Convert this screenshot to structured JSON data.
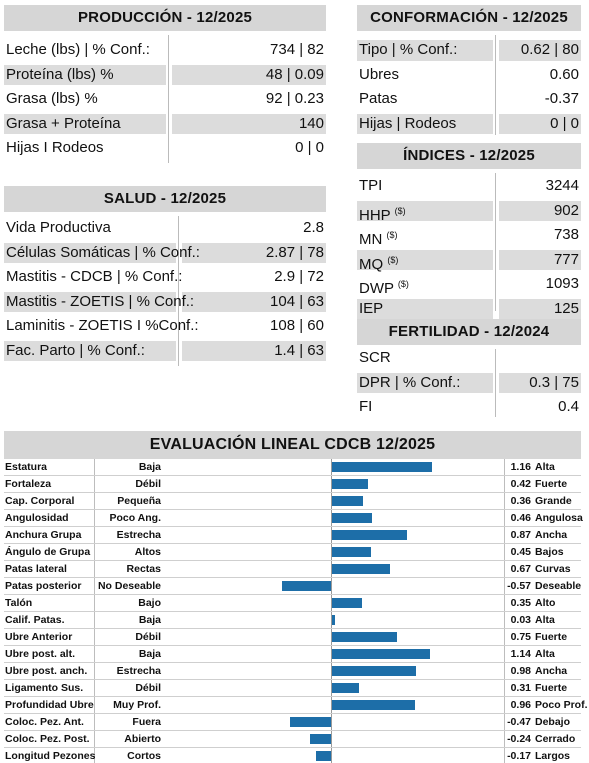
{
  "produccion": {
    "title": "PRODUCCIÓN - 12/2025",
    "rows": [
      {
        "label": "Leche (lbs) | % Conf.:",
        "value": "734 | 82"
      },
      {
        "label": "Proteína (lbs) %",
        "value": "48 | 0.09"
      },
      {
        "label": "Grasa (lbs) %",
        "value": "92 | 0.23"
      },
      {
        "label": "Grasa + Proteína",
        "value": "140"
      },
      {
        "label": "Hijas I Rodeos",
        "value": "0 | 0"
      }
    ]
  },
  "salud": {
    "title": "SALUD - 12/2025",
    "rows": [
      {
        "label": "Vida Productiva",
        "value": "2.8"
      },
      {
        "label": "Células Somáticas | % Conf.:",
        "value": "2.87 | 78"
      },
      {
        "label": "Mastitis - CDCB | % Conf.:",
        "value": "2.9 | 72"
      },
      {
        "label": "Mastitis - ZOETIS | % Conf.:",
        "value": "104 | 63"
      },
      {
        "label": "Laminitis - ZOETIS I %Conf.:",
        "value": "108 | 60"
      },
      {
        "label": "Fac. Parto | % Conf.:",
        "value": "1.4 | 63"
      }
    ]
  },
  "conformacion": {
    "title": "CONFORMACIÓN - 12/2025",
    "rows": [
      {
        "label": "Tipo | % Conf.:",
        "value": "0.62 | 80"
      },
      {
        "label": "Ubres",
        "value": "0.60"
      },
      {
        "label": "Patas",
        "value": "-0.37"
      },
      {
        "label": "Hijas | Rodeos",
        "value": "0 | 0"
      }
    ]
  },
  "indices": {
    "title": "ÍNDICES - 12/2025",
    "rows": [
      {
        "label": "TPI",
        "sup": "",
        "value": "3244"
      },
      {
        "label": "HHP",
        "sup": "($)",
        "value": "902"
      },
      {
        "label": "MN",
        "sup": "($)",
        "value": "738"
      },
      {
        "label": "MQ",
        "sup": "($)",
        "value": "777"
      },
      {
        "label": "DWP",
        "sup": "($)",
        "value": "1093"
      },
      {
        "label": "IEP",
        "sup": "",
        "value": "125"
      }
    ]
  },
  "fertilidad": {
    "title": "FERTILIDAD - 12/2024",
    "rows": [
      {
        "label": "SCR",
        "value": ""
      },
      {
        "label": "DPR | % Conf.:",
        "value": "0.3 | 75"
      },
      {
        "label": "FI",
        "value": "0.4"
      }
    ]
  },
  "lineal": {
    "title": "EVALUACIÓN LINEAL CDCB 12/2025",
    "bar_color": "#1d6ea8",
    "scale_max": 1.16,
    "rows": [
      {
        "trait": "Estatura",
        "left": "Baja",
        "value": 1.16,
        "value_text": "1.16",
        "right": "Alta"
      },
      {
        "trait": "Fortaleza",
        "left": "Débil",
        "value": 0.42,
        "value_text": "0.42",
        "right": "Fuerte"
      },
      {
        "trait": "Cap. Corporal",
        "left": "Pequeña",
        "value": 0.36,
        "value_text": "0.36",
        "right": "Grande"
      },
      {
        "trait": "Angulosidad",
        "left": "Poco Ang.",
        "value": 0.46,
        "value_text": "0.46",
        "right": "Angulosa"
      },
      {
        "trait": "Anchura Grupa",
        "left": "Estrecha",
        "value": 0.87,
        "value_text": "0.87",
        "right": "Ancha"
      },
      {
        "trait": "Ángulo de Grupa",
        "left": "Altos",
        "value": 0.45,
        "value_text": "0.45",
        "right": "Bajos"
      },
      {
        "trait": "Patas lateral",
        "left": "Rectas",
        "value": 0.67,
        "value_text": "0.67",
        "right": "Curvas"
      },
      {
        "trait": "Patas posterior",
        "left": "No Deseable",
        "value": -0.57,
        "value_text": "-0.57",
        "right": "Deseable"
      },
      {
        "trait": "Talón",
        "left": "Bajo",
        "value": 0.35,
        "value_text": "0.35",
        "right": "Alto"
      },
      {
        "trait": "Calif. Patas.",
        "left": "Baja",
        "value": 0.03,
        "value_text": "0.03",
        "right": "Alta"
      },
      {
        "trait": "Ubre Anterior",
        "left": "Débil",
        "value": 0.75,
        "value_text": "0.75",
        "right": "Fuerte"
      },
      {
        "trait": "Ubre post. alt.",
        "left": "Baja",
        "value": 1.14,
        "value_text": "1.14",
        "right": "Alta"
      },
      {
        "trait": "Ubre post. anch.",
        "left": "Estrecha",
        "value": 0.98,
        "value_text": "0.98",
        "right": "Ancha"
      },
      {
        "trait": "Ligamento Sus.",
        "left": "Débil",
        "value": 0.31,
        "value_text": "0.31",
        "right": "Fuerte"
      },
      {
        "trait": "Profundidad Ubre",
        "left": "Muy Prof.",
        "value": 0.96,
        "value_text": "0.96",
        "right": "Poco Prof."
      },
      {
        "trait": "Coloc. Pez. Ant.",
        "left": "Fuera",
        "value": -0.47,
        "value_text": "-0.47",
        "right": "Debajo"
      },
      {
        "trait": "Coloc. Pez. Post.",
        "left": "Abierto",
        "value": -0.24,
        "value_text": "-0.24",
        "right": "Cerrado"
      },
      {
        "trait": "Longitud Pezones",
        "left": "Cortos",
        "value": -0.17,
        "value_text": "-0.17",
        "right": "Largos"
      }
    ]
  }
}
